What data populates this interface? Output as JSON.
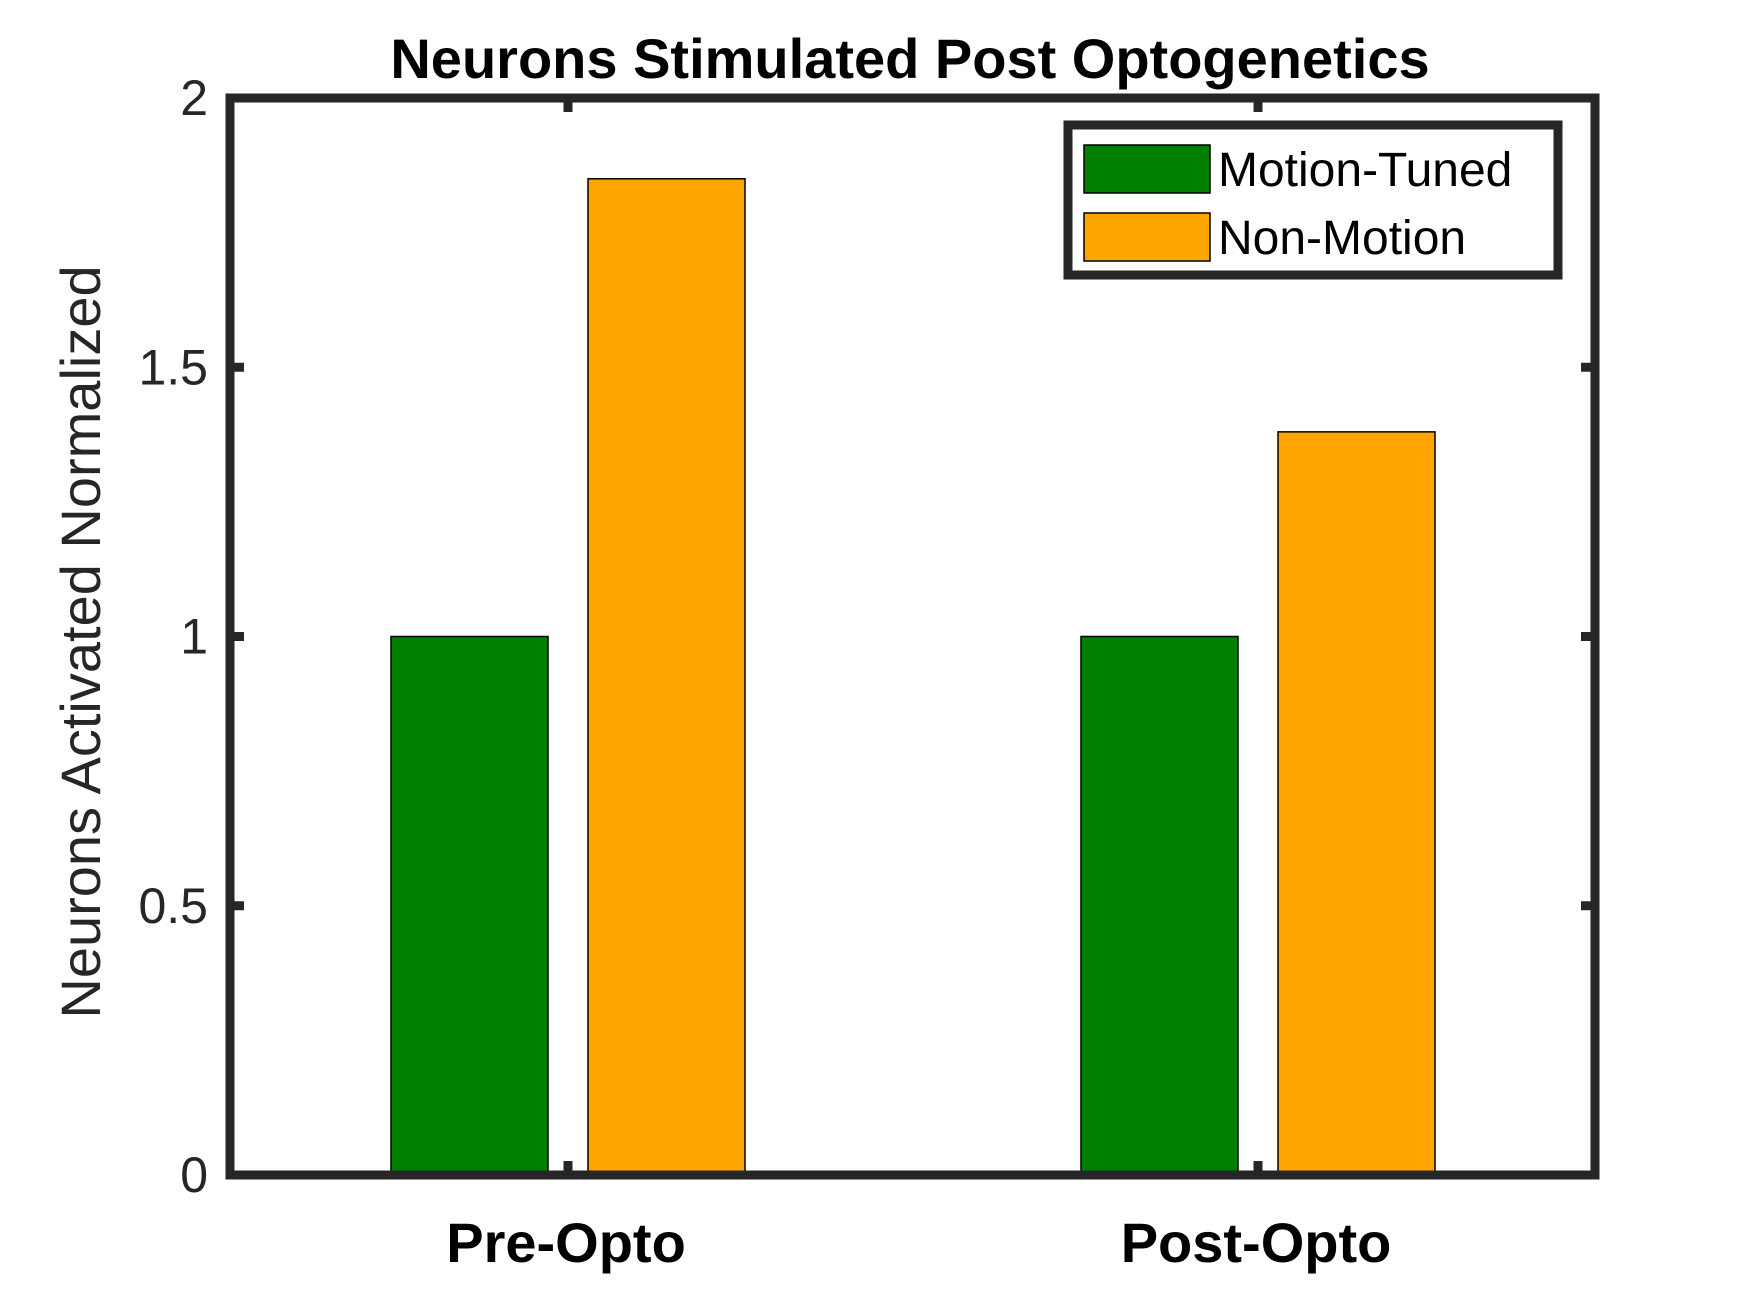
{
  "chart_data": {
    "type": "bar",
    "title": "Neurons Stimulated Post Optogenetics",
    "xlabel": "",
    "ylabel": "Neurons Activated Normalized",
    "categories": [
      "Pre-Opto",
      "Post-Opto"
    ],
    "series": [
      {
        "name": "Motion-Tuned",
        "values": [
          1.0,
          1.0
        ],
        "color": "#008000"
      },
      {
        "name": "Non-Motion",
        "values": [
          1.85,
          1.38
        ],
        "color": "#FFA500"
      }
    ],
    "ylim": [
      0,
      2
    ],
    "yticks": [
      0,
      0.5,
      1,
      1.5,
      2
    ],
    "ytick_labels": [
      "0",
      "0.5",
      "1",
      "1.5",
      "2"
    ],
    "grid": false,
    "legend_position": "top-right",
    "axis_color": "#262626"
  }
}
